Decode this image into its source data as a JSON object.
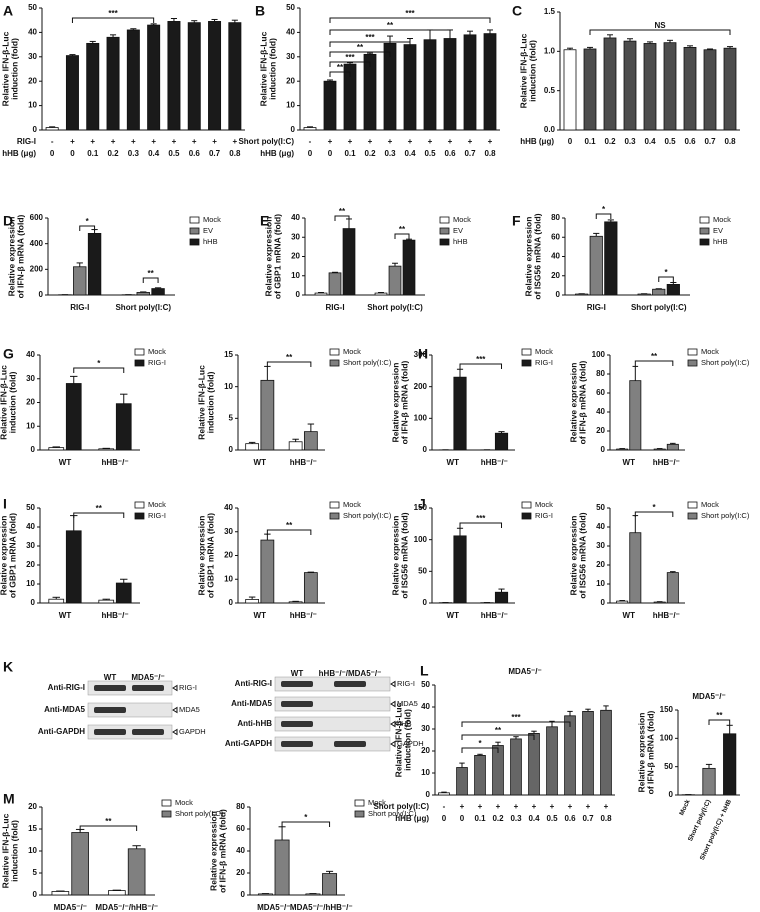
{
  "panel_labels": [
    "A",
    "B",
    "C",
    "D",
    "E",
    "F",
    "G",
    "H",
    "I",
    "J",
    "K",
    "L",
    "M"
  ],
  "chart_data": [
    {
      "type": "bar",
      "ylabel": [
        "Relative IFN-β-Luc",
        "induction (fold)"
      ],
      "values": [
        1,
        30.5,
        35.5,
        38,
        41,
        43,
        44.5,
        44,
        44.5,
        44
      ],
      "errors": [
        0.3,
        0.4,
        0.8,
        1,
        0.5,
        0.5,
        1.2,
        0.8,
        0.8,
        1
      ],
      "colors": [
        "#ffffff",
        "#1a1a1a",
        "#1a1a1a",
        "#1a1a1a",
        "#1a1a1a",
        "#1a1a1a",
        "#1a1a1a",
        "#1a1a1a",
        "#1a1a1a",
        "#1a1a1a"
      ],
      "ylim": [
        0,
        50
      ],
      "yticks": [
        0,
        10,
        20,
        30,
        40,
        50
      ],
      "rows": [
        {
          "label": "RIG-I",
          "values": [
            "-",
            "+",
            "+",
            "+",
            "+",
            "+",
            "+",
            "+",
            "+",
            "+"
          ]
        },
        {
          "label": "hHB (μg)",
          "values": [
            0,
            0,
            0.1,
            0.2,
            0.3,
            0.4,
            0.5,
            0.6,
            0.7,
            0.8
          ]
        }
      ],
      "annotations": [
        "***"
      ]
    },
    {
      "type": "bar",
      "ylabel": [
        "Relative IFN-β-Luc",
        "induction (fold)"
      ],
      "values": [
        1,
        20,
        27,
        31,
        35.5,
        35,
        37,
        37.5,
        39,
        39.5
      ],
      "errors": [
        0.3,
        0.5,
        0.6,
        0.5,
        3,
        2.5,
        4,
        3.5,
        1.5,
        1.5
      ],
      "colors": [
        "#ffffff",
        "#1a1a1a",
        "#1a1a1a",
        "#1a1a1a",
        "#1a1a1a",
        "#1a1a1a",
        "#1a1a1a",
        "#1a1a1a",
        "#1a1a1a",
        "#1a1a1a"
      ],
      "ylim": [
        0,
        50
      ],
      "yticks": [
        0,
        10,
        20,
        30,
        40,
        50
      ],
      "rows": [
        {
          "label": "Short poly(I:C)",
          "values": [
            "-",
            "+",
            "+",
            "+",
            "+",
            "+",
            "+",
            "+",
            "+",
            "+"
          ]
        },
        {
          "label": "hHB (μg)",
          "values": [
            0,
            0,
            0.1,
            0.2,
            0.3,
            0.4,
            0.5,
            0.6,
            0.7,
            0.8
          ]
        }
      ],
      "annotations": [
        "**",
        "***",
        "**",
        "***",
        "**",
        "***"
      ]
    },
    {
      "type": "bar",
      "ylabel": [
        "Relative IFN-β-Luc",
        "induction (fold)"
      ],
      "values": [
        1.02,
        1.03,
        1.17,
        1.13,
        1.1,
        1.11,
        1.05,
        1.02,
        1.04
      ],
      "errors": [
        0.02,
        0.02,
        0.04,
        0.03,
        0.02,
        0.03,
        0.02,
        0.01,
        0.02
      ],
      "colors": [
        "#ffffff",
        "#4d4d4d",
        "#4d4d4d",
        "#4d4d4d",
        "#4d4d4d",
        "#4d4d4d",
        "#4d4d4d",
        "#4d4d4d",
        "#4d4d4d"
      ],
      "ylim": [
        0,
        1.5
      ],
      "yticks": [
        {
          "value": 0,
          "label": "0.0"
        },
        {
          "value": 0.5,
          "label": "0.5"
        },
        {
          "value": 1,
          "label": "1.0"
        },
        {
          "value": 1.5,
          "label": "1.5"
        }
      ],
      "rows": [
        {
          "label": "hHB (μg)",
          "values": [
            0,
            0.1,
            0.2,
            0.3,
            0.4,
            0.5,
            0.6,
            0.7,
            0.8
          ]
        }
      ],
      "annotations": [
        "NS"
      ]
    },
    {
      "type": "grouped-bar",
      "ylabel": [
        "Relative expression",
        "of IFN-β mRNA (fold)"
      ],
      "categories": [
        "RIG-I",
        "Short poly(I:C)"
      ],
      "series": [
        {
          "name": "Mock",
          "color": "#ffffff",
          "values": [
            2,
            2
          ],
          "errors": [
            0.5,
            0.5
          ]
        },
        {
          "name": "EV",
          "color": "#808080",
          "values": [
            220,
            20
          ],
          "errors": [
            30,
            4
          ]
        },
        {
          "name": "hHB",
          "color": "#1a1a1a",
          "values": [
            480,
            50
          ],
          "errors": [
            30,
            6
          ]
        }
      ],
      "ylim": [
        0,
        600
      ],
      "yticks": [
        0,
        200,
        400,
        600
      ],
      "annotations": [
        "*",
        "**"
      ]
    },
    {
      "type": "grouped-bar",
      "ylabel": [
        "Relative expression",
        "of GBP1 mRNA (fold)"
      ],
      "categories": [
        "RIG-I",
        "Short poly(I:C)"
      ],
      "series": [
        {
          "name": "Mock",
          "color": "#ffffff",
          "values": [
            1,
            1
          ],
          "errors": [
            0.3,
            0.3
          ]
        },
        {
          "name": "EV",
          "color": "#808080",
          "values": [
            11.5,
            15
          ],
          "errors": [
            0.3,
            1.5
          ]
        },
        {
          "name": "hHB",
          "color": "#1a1a1a",
          "values": [
            34.5,
            28.5
          ],
          "errors": [
            5,
            0.5
          ]
        }
      ],
      "ylim": [
        0,
        40
      ],
      "yticks": [
        0,
        10,
        20,
        30,
        40
      ],
      "annotations": [
        "**",
        "**"
      ]
    },
    {
      "type": "grouped-bar",
      "ylabel": [
        "Relative expression",
        "of ISG56 mRNA (fold)"
      ],
      "categories": [
        "RIG-I",
        "Short poly(I:C)"
      ],
      "series": [
        {
          "name": "Mock",
          "color": "#ffffff",
          "values": [
            1,
            1
          ],
          "errors": [
            0.3,
            0.3
          ]
        },
        {
          "name": "EV",
          "color": "#808080",
          "values": [
            61,
            6
          ],
          "errors": [
            3,
            0.5
          ]
        },
        {
          "name": "hHB",
          "color": "#1a1a1a",
          "values": [
            76,
            11
          ],
          "errors": [
            2,
            2
          ]
        }
      ],
      "ylim": [
        0,
        80
      ],
      "yticks": [
        0,
        20,
        40,
        60,
        80
      ],
      "annotations": [
        "*",
        "*"
      ]
    },
    {
      "type": "grouped-bar",
      "ylabel": [
        "Relative IFN-β-Luc",
        "induction (fold)"
      ],
      "categories": [
        "WT",
        "hHB⁻/⁻"
      ],
      "series": [
        {
          "name": "Mock",
          "color": "#ffffff",
          "values": [
            1,
            0.5
          ],
          "errors": [
            0.3,
            0.2
          ]
        },
        {
          "name": "RIG-I",
          "color": "#1a1a1a",
          "values": [
            28,
            19.5
          ],
          "errors": [
            3,
            4
          ]
        }
      ],
      "ylim": [
        0,
        40
      ],
      "yticks": [
        0,
        10,
        20,
        30,
        40
      ],
      "annotations": [
        "*"
      ]
    },
    {
      "type": "grouped-bar",
      "ylabel": [
        "Relative IFN-β-Luc",
        "induction (fold)"
      ],
      "categories": [
        "WT",
        "hHB⁻/⁻"
      ],
      "series": [
        {
          "name": "Mock",
          "color": "#ffffff",
          "values": [
            1,
            1.3
          ],
          "errors": [
            0.2,
            0.4
          ]
        },
        {
          "name": "Short poly(I:C)",
          "color": "#808080",
          "values": [
            11,
            2.9
          ],
          "errors": [
            2.2,
            1.2
          ]
        }
      ],
      "ylim": [
        0,
        15
      ],
      "yticks": [
        0,
        5,
        10,
        15
      ],
      "annotations": [
        "**"
      ]
    },
    {
      "type": "grouped-bar",
      "ylabel": [
        "Relative expression",
        "of IFN-β mRNA (fold)"
      ],
      "categories": [
        "WT",
        "hHB⁻/⁻"
      ],
      "series": [
        {
          "name": "Mock",
          "color": "#ffffff",
          "values": [
            0.5,
            0.5
          ],
          "errors": [
            0.2,
            0.2
          ]
        },
        {
          "name": "RIG-I",
          "color": "#1a1a1a",
          "values": [
            230,
            53
          ],
          "errors": [
            25,
            5
          ]
        }
      ],
      "ylim": [
        0,
        300
      ],
      "yticks": [
        0,
        100,
        200,
        300
      ],
      "annotations": [
        "***"
      ]
    },
    {
      "type": "grouped-bar",
      "ylabel": [
        "Relative expression",
        "of IFN-β mRNA (fold)"
      ],
      "categories": [
        "WT",
        "hHB⁻/⁻"
      ],
      "series": [
        {
          "name": "Mock",
          "color": "#ffffff",
          "values": [
            1,
            1
          ],
          "errors": [
            0.5,
            0.5
          ]
        },
        {
          "name": "Short poly(I:C)",
          "color": "#808080",
          "values": [
            73,
            6
          ],
          "errors": [
            15,
            1
          ]
        }
      ],
      "ylim": [
        0,
        100
      ],
      "yticks": [
        0,
        20,
        40,
        60,
        80,
        100
      ],
      "annotations": [
        "**"
      ]
    },
    {
      "type": "grouped-bar",
      "ylabel": [
        "Relative expression",
        "of GBP1 mRNA (fold)"
      ],
      "categories": [
        "WT",
        "hHB⁻/⁻"
      ],
      "series": [
        {
          "name": "Mock",
          "color": "#ffffff",
          "values": [
            2,
            1.5
          ],
          "errors": [
            1,
            0.5
          ]
        },
        {
          "name": "RIG-I",
          "color": "#1a1a1a",
          "values": [
            38,
            10.5
          ],
          "errors": [
            8,
            2
          ]
        }
      ],
      "ylim": [
        0,
        50
      ],
      "yticks": [
        0,
        10,
        20,
        30,
        40,
        50
      ],
      "annotations": [
        "**"
      ]
    },
    {
      "type": "grouped-bar",
      "ylabel": [
        "Relative expression",
        "of GBP1 mRNA (fold)"
      ],
      "categories": [
        "WT",
        "hHB⁻/⁻"
      ],
      "series": [
        {
          "name": "Mock",
          "color": "#ffffff",
          "values": [
            1.5,
            0.5
          ],
          "errors": [
            1,
            0.2
          ]
        },
        {
          "name": "Short poly(I:C)",
          "color": "#808080",
          "values": [
            26.5,
            12.8
          ],
          "errors": [
            2.5,
            0.2
          ]
        }
      ],
      "ylim": [
        0,
        40
      ],
      "yticks": [
        0,
        10,
        20,
        30,
        40
      ],
      "annotations": [
        "**"
      ]
    },
    {
      "type": "grouped-bar",
      "ylabel": [
        "Relative expression",
        "of ISG56 mRNA (fold)"
      ],
      "categories": [
        "WT",
        "hHB⁻/⁻"
      ],
      "series": [
        {
          "name": "Mock",
          "color": "#ffffff",
          "values": [
            0.5,
            0.5
          ],
          "errors": [
            0.2,
            0.2
          ]
        },
        {
          "name": "RIG-I",
          "color": "#1a1a1a",
          "values": [
            106,
            17
          ],
          "errors": [
            12,
            5
          ]
        }
      ],
      "ylim": [
        0,
        150
      ],
      "yticks": [
        0,
        50,
        100,
        150
      ],
      "annotations": [
        "***"
      ]
    },
    {
      "type": "grouped-bar",
      "ylabel": [
        "Relative expression",
        "of ISG56 mRNA (fold)"
      ],
      "categories": [
        "WT",
        "hHB⁻/⁻"
      ],
      "series": [
        {
          "name": "Mock",
          "color": "#ffffff",
          "values": [
            1,
            0.5
          ],
          "errors": [
            0.3,
            0.2
          ]
        },
        {
          "name": "Short poly(I:C)",
          "color": "#808080",
          "values": [
            37,
            16
          ],
          "errors": [
            9,
            0.5
          ]
        }
      ],
      "ylim": [
        0,
        50
      ],
      "yticks": [
        0,
        10,
        20,
        30,
        40,
        50
      ],
      "annotations": [
        "*"
      ]
    },
    {
      "type": "bar",
      "title": "MDA5⁻/⁻",
      "ylabel": [
        "Relative IFN-β-Luc",
        "induction (fold)"
      ],
      "values": [
        1,
        12.5,
        18,
        22.5,
        25.5,
        28,
        31,
        36,
        38,
        38.5
      ],
      "errors": [
        0.3,
        2,
        0.5,
        1.5,
        1,
        1,
        2.5,
        2,
        1,
        2
      ],
      "colors": [
        "#ffffff",
        "#666666",
        "#666666",
        "#666666",
        "#666666",
        "#666666",
        "#666666",
        "#666666",
        "#666666",
        "#666666"
      ],
      "ylim": [
        0,
        50
      ],
      "yticks": [
        0,
        10,
        20,
        30,
        40,
        50
      ],
      "rows": [
        {
          "label": "Short poly(I:C)",
          "values": [
            "-",
            "+",
            "+",
            "+",
            "+",
            "+",
            "+",
            "+",
            "+",
            "+"
          ]
        },
        {
          "label": "hHB (μg)",
          "values": [
            0,
            0,
            0.1,
            0.2,
            0.3,
            0.4,
            0.5,
            0.6,
            0.7,
            0.8
          ]
        }
      ],
      "annotations": [
        "*",
        "**",
        "***"
      ]
    },
    {
      "type": "bar",
      "title": "MDA5⁻/⁻",
      "ylabel": [
        "Relative expression",
        "of IFN-β mRNA (fold)"
      ],
      "categories": [
        "Mock",
        "Short poly(I:C)",
        "Short poly(I:C) + hHB"
      ],
      "values": [
        0.5,
        47,
        108
      ],
      "errors": [
        0.2,
        7,
        15
      ],
      "colors": [
        "#ffffff",
        "#808080",
        "#1a1a1a"
      ],
      "ylim": [
        0,
        150
      ],
      "yticks": [
        0,
        50,
        100,
        150
      ],
      "annotations": [
        "**"
      ]
    },
    {
      "type": "grouped-bar",
      "ylabel": [
        "Relative IFN-β-Luc",
        "induction (fold)"
      ],
      "categories": [
        "MDA5⁻/⁻",
        "MDA5⁻/⁻/hHB⁻/⁻"
      ],
      "series": [
        {
          "name": "Mock",
          "color": "#ffffff",
          "values": [
            0.8,
            1
          ],
          "errors": [
            0.1,
            0.1
          ]
        },
        {
          "name": "Short poly(I:C)",
          "color": "#808080",
          "values": [
            14.2,
            10.5
          ],
          "errors": [
            0.7,
            0.7
          ]
        }
      ],
      "ylim": [
        0,
        20
      ],
      "yticks": [
        0,
        5,
        10,
        15,
        20
      ],
      "annotations": [
        "**"
      ]
    },
    {
      "type": "grouped-bar",
      "ylabel": [
        "Relative expression",
        "of IFN-β mRNA (fold)"
      ],
      "categories": [
        "MDA5⁻/⁻",
        "MDA5⁻/⁻/hHB⁻/⁻"
      ],
      "series": [
        {
          "name": "Mock",
          "color": "#ffffff",
          "values": [
            1,
            1
          ],
          "errors": [
            0.3,
            0.3
          ]
        },
        {
          "name": "Short poly(I:C)",
          "color": "#808080",
          "values": [
            50,
            19.5
          ],
          "errors": [
            12,
            2
          ]
        }
      ],
      "ylim": [
        0,
        80
      ],
      "yticks": [
        0,
        20,
        40,
        60,
        80
      ],
      "annotations": [
        "*"
      ]
    }
  ],
  "blots": [
    {
      "columns": [
        "WT",
        "MDA5⁻/⁻"
      ],
      "antibodies": [
        "Anti-RIG-I",
        "Anti-MDA5",
        "Anti-GAPDH"
      ],
      "targets": [
        "RIG-I",
        "MDA5",
        "GAPDH"
      ]
    },
    {
      "columns": [
        "WT",
        "hHB⁻/⁻/MDA5⁻/⁻"
      ],
      "antibodies": [
        "Anti-RIG-I",
        "Anti-MDA5",
        "Anti-hHB",
        "Anti-GAPDH"
      ],
      "targets": [
        "RIG-I",
        "MDA5",
        "hHB",
        "GAPDH"
      ]
    }
  ]
}
